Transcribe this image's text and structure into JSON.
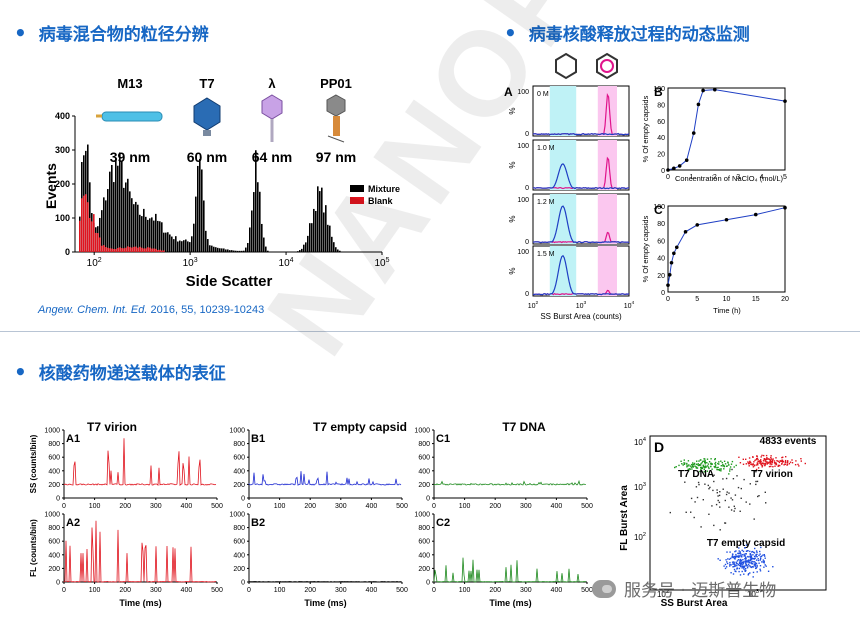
{
  "sections": {
    "s1_title": "病毒混合物的粒径分辨",
    "s2_title": "病毒核酸释放过程的动态监测",
    "s3_title": "核酸药物递送载体的表征"
  },
  "citation": {
    "journal": "Angew. Chem. Int. Ed.",
    "rest": " 2016, 55, 10239-10243"
  },
  "watermark": {
    "diagonal": "NANOFCM",
    "account": "服务号 · 迈斯普生物",
    "icon": "wechat-icon"
  },
  "panel_size": {
    "viruses": [
      {
        "name": "M13",
        "size": "39 nm"
      },
      {
        "name": "T7",
        "size": "60 nm"
      },
      {
        "name": "λ",
        "size": "64 nm"
      },
      {
        "name": "PP01",
        "size": "97 nm"
      }
    ],
    "xlabel": "Side Scatter",
    "ylabel": "Events",
    "yticks": [
      "0",
      "100",
      "200",
      "300",
      "400"
    ],
    "xticks": [
      {
        "base": "10",
        "exp": "2"
      },
      {
        "base": "10",
        "exp": "3"
      },
      {
        "base": "10",
        "exp": "4"
      },
      {
        "base": "10",
        "exp": "5"
      }
    ],
    "legend": [
      {
        "label": "Mixture",
        "color": "#000000"
      },
      {
        "label": "Blank",
        "color": "#e0141e"
      }
    ]
  },
  "panel_A": {
    "label": "A",
    "rows": [
      {
        "conc": "0 M"
      },
      {
        "conc": "1.0 M"
      },
      {
        "conc": "1.2 M"
      },
      {
        "conc": "1.5 M"
      }
    ],
    "yticks": [
      "0",
      "100"
    ],
    "ylabel": "%",
    "xticks": [
      {
        "base": "10",
        "exp": "2"
      },
      {
        "base": "10",
        "exp": "3"
      },
      {
        "base": "10",
        "exp": "4"
      }
    ],
    "xlabel": "SS Burst Area (counts)"
  },
  "panel_B": {
    "label": "B",
    "ylabel": "% Of empty capsids",
    "xlabel": "Concentration of NaClO₄ (mol/L)",
    "xticks": [
      "0",
      "1",
      "2",
      "3",
      "4",
      "5"
    ],
    "yticks": [
      "0",
      "20",
      "40",
      "60",
      "80",
      "100"
    ]
  },
  "panel_C": {
    "label": "C",
    "ylabel": "% Of empty capsids",
    "xlabel": "Time (h)",
    "xticks": [
      "0",
      "5",
      "10",
      "15",
      "20"
    ],
    "yticks": [
      "0",
      "20",
      "40",
      "60",
      "80",
      "100"
    ]
  },
  "panel_traces": {
    "columns": [
      {
        "title": "T7 virion",
        "top": "A1",
        "bottom": "A2",
        "color": "#e0141e"
      },
      {
        "title": "T7 empty capsid",
        "top": "B1",
        "bottom": "B2",
        "color": "#1f2bd1"
      },
      {
        "title": "T7 DNA",
        "top": "C1",
        "bottom": "C2",
        "color": "#1e8a1e"
      }
    ],
    "ss_ylabel": "SS (counts/bin)",
    "fl_ylabel": "FL (counts/bin)",
    "ss_yticks": [
      "0",
      "200",
      "400",
      "600",
      "800",
      "1000"
    ],
    "fl_yticks": [
      "0",
      "200",
      "400",
      "600",
      "800",
      "1000"
    ],
    "xticks": [
      "0",
      "100",
      "200",
      "300",
      "400",
      "500"
    ],
    "xlabel": "Time (ms)"
  },
  "panel_D": {
    "label": "D",
    "events": "4833 events",
    "xlabel": "SS Burst Area",
    "ylabel": "FL Burst Area",
    "xticks": [
      {
        "base": "10",
        "exp": "2"
      },
      {
        "base": "10",
        "exp": "3"
      }
    ],
    "yticks": [
      {
        "base": "10",
        "exp": "4"
      },
      {
        "base": "10",
        "exp": "3"
      },
      {
        "base": "10",
        "exp": "2"
      }
    ],
    "pop_dna": "T7 DNA",
    "pop_virion": "T7 virion",
    "pop_capsid": "T7 empty capsid",
    "colors": {
      "dna": "#1e9a1e",
      "virion": "#e0141e",
      "capsid": "#1f4fe0"
    }
  }
}
